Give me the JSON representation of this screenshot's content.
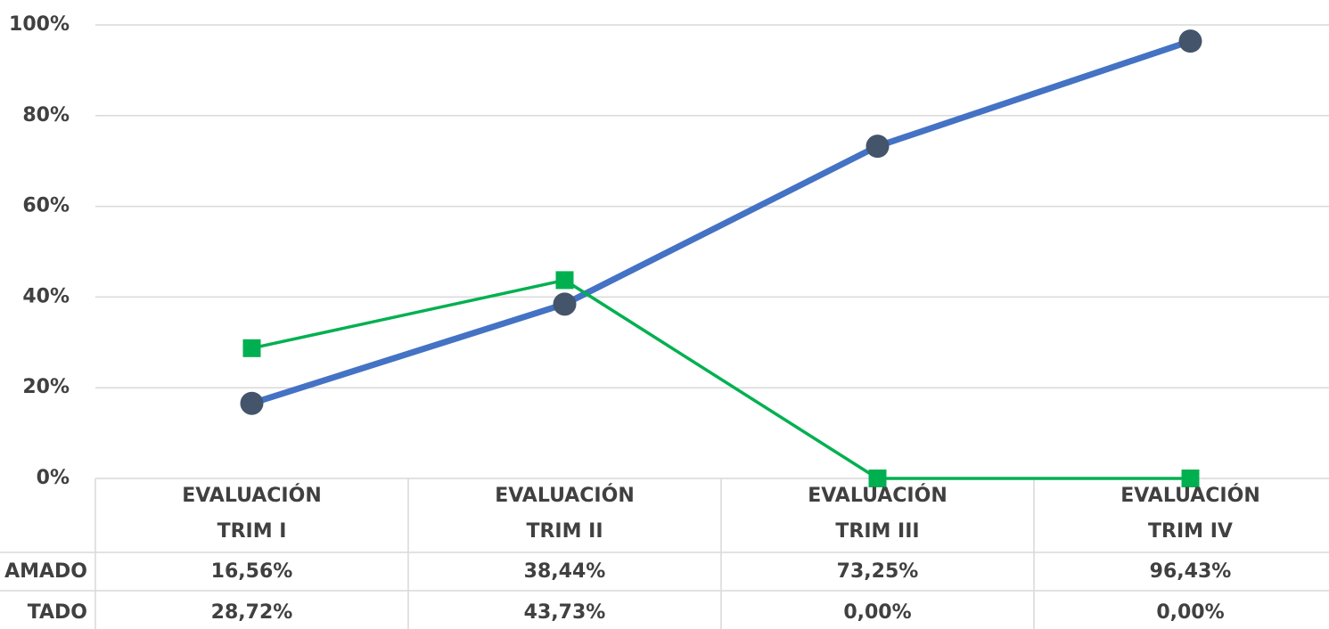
{
  "chart_data": {
    "type": "line",
    "categories": [
      "EVALUACIÓN TRIM I",
      "EVALUACIÓN TRIM II",
      "EVALUACIÓN TRIM III",
      "EVALUACIÓN TRIM IV"
    ],
    "series": [
      {
        "name": "AMADO",
        "color": "#4472c4",
        "marker_color": "#44546a",
        "marker": "circle",
        "values": [
          16.56,
          38.44,
          73.25,
          96.43
        ],
        "value_labels": [
          "16,56%",
          "38,44%",
          "73,25%",
          "96,43%"
        ]
      },
      {
        "name": "TADO",
        "color": "#00b050",
        "marker_color": "#00b050",
        "marker": "square",
        "values": [
          28.72,
          43.73,
          0,
          0
        ],
        "value_labels": [
          "28,72%",
          "43,73%",
          "0,00%",
          "0,00%"
        ]
      }
    ],
    "ylim": [
      0,
      100
    ],
    "yticks": [
      {
        "value": 0,
        "label": "0%"
      },
      {
        "value": 20,
        "label": "20%"
      },
      {
        "value": 40,
        "label": "40%"
      },
      {
        "value": 60,
        "label": "60%"
      },
      {
        "value": 80,
        "label": "80%"
      },
      {
        "value": 100,
        "label": "100%"
      }
    ],
    "grid": true
  }
}
